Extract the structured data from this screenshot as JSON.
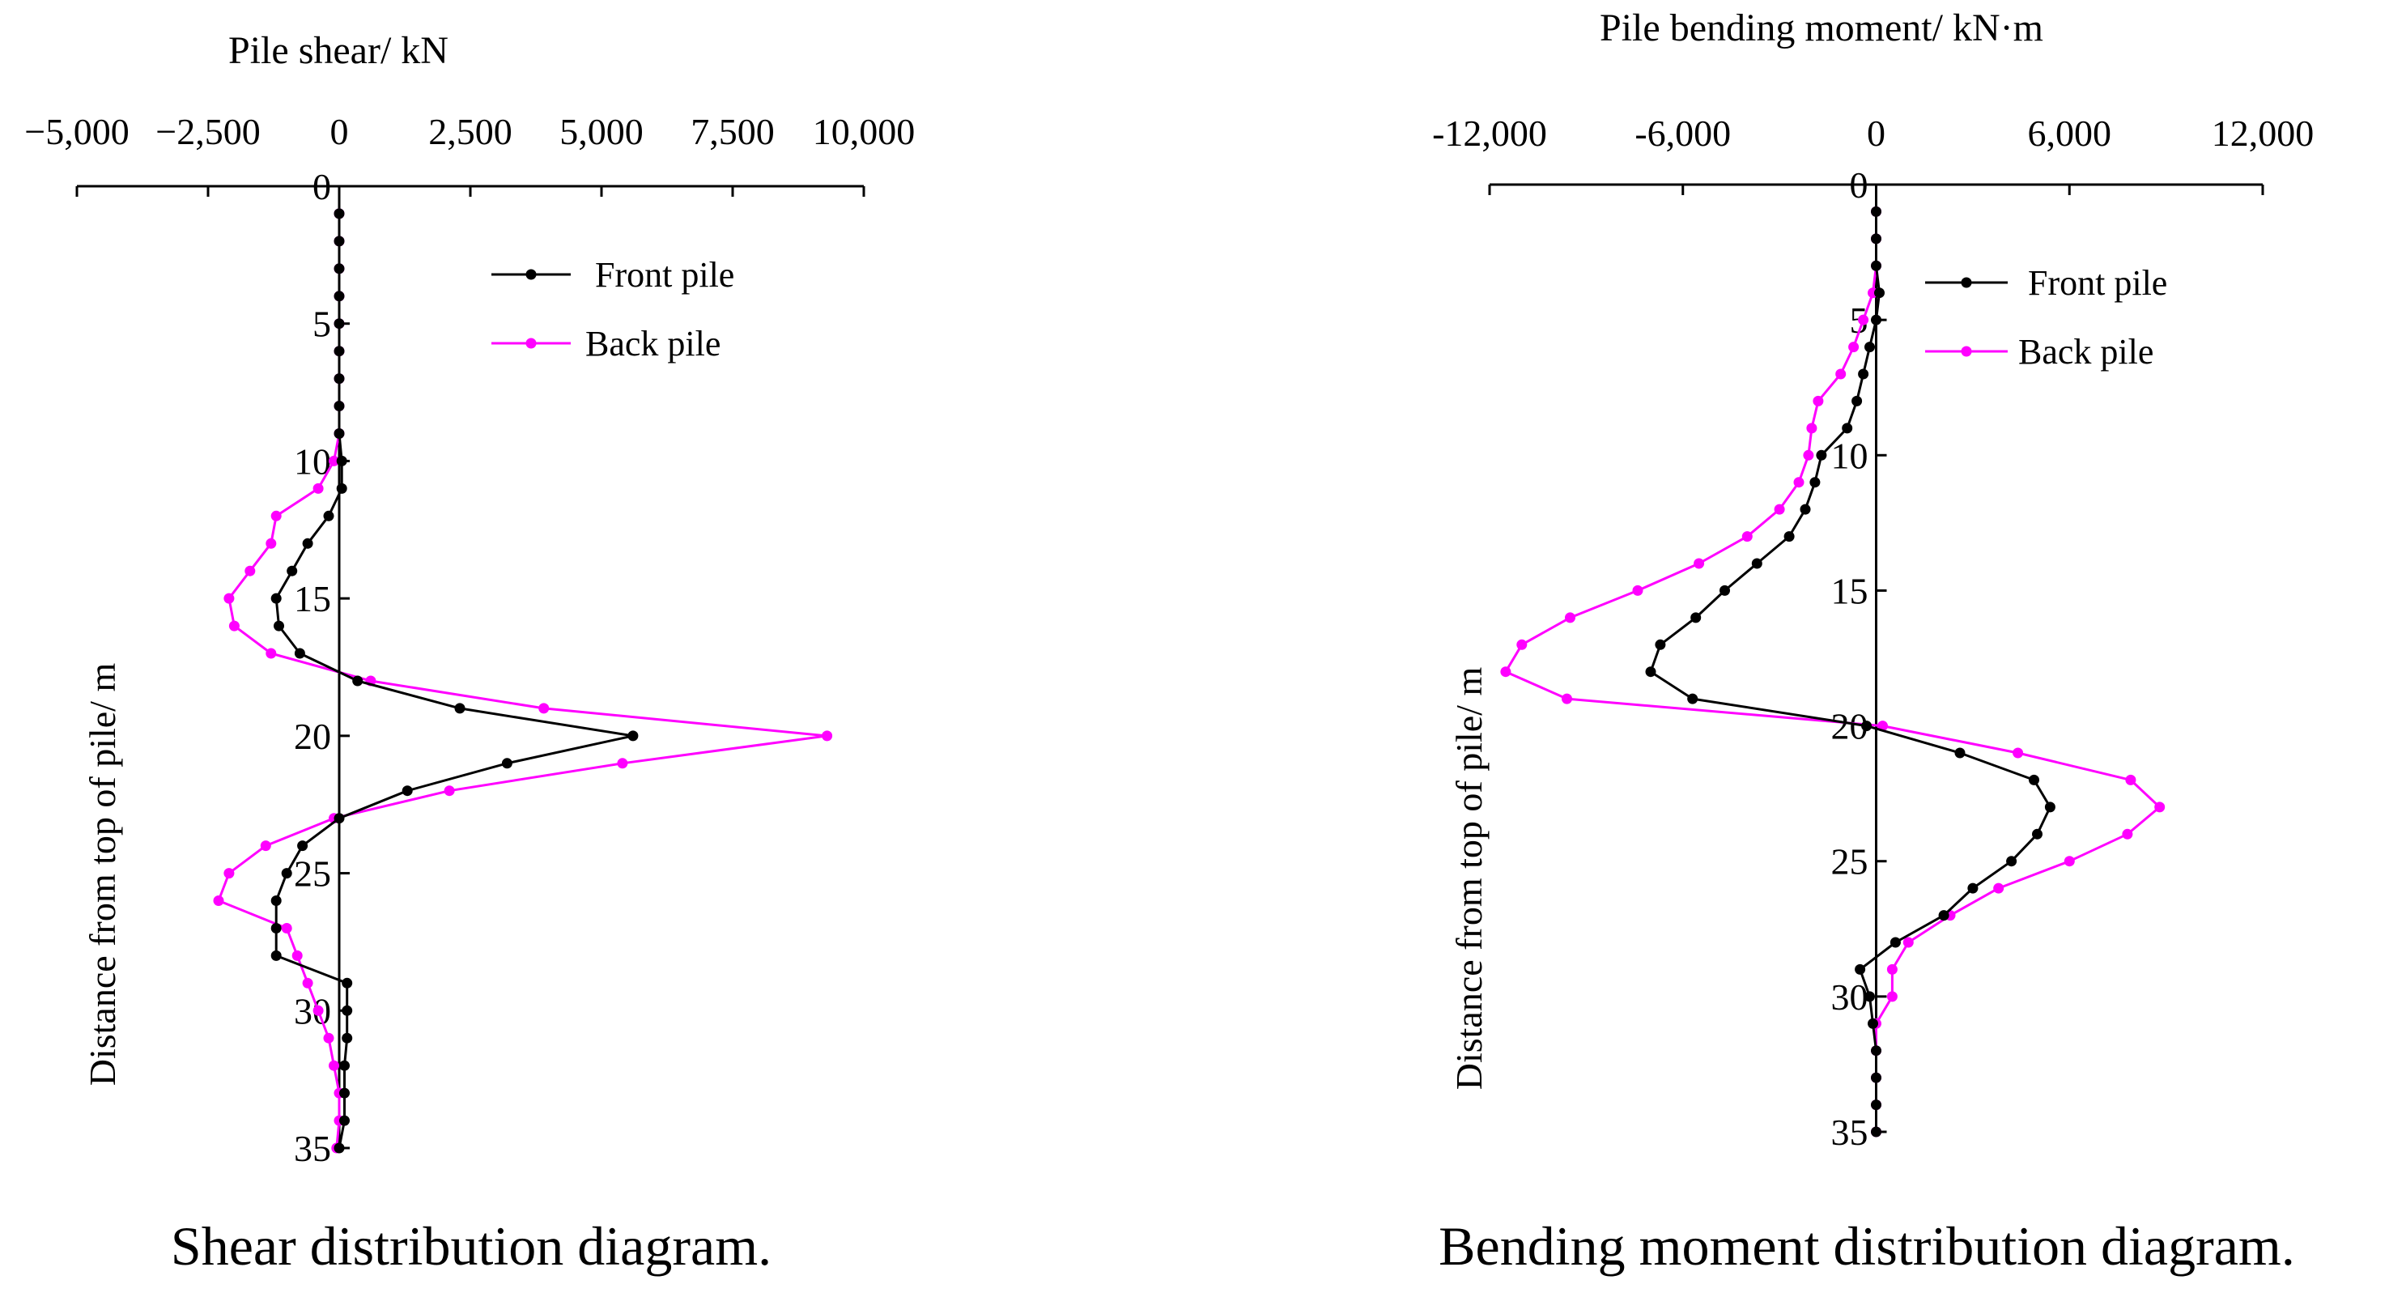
{
  "chart_data": [
    {
      "type": "line",
      "title": "Pile shear/ kN",
      "caption": "Shear distribution diagram.",
      "xlabel": "Pile shear/ kN",
      "ylabel": "Distance from top of pile/ m",
      "xlim": [
        -5000,
        10000
      ],
      "ylim": [
        0,
        35
      ],
      "y_inverted": true,
      "x_ticks": [
        -5000,
        -2500,
        0,
        2500,
        5000,
        7500,
        10000
      ],
      "x_tick_labels": [
        "−5,000",
        "−2,500",
        "0",
        "2,500",
        "5,000",
        "7,500",
        "10,000"
      ],
      "y_ticks": [
        0,
        5,
        10,
        15,
        20,
        25,
        30,
        35
      ],
      "y_tick_labels": [
        "0",
        "5",
        "10",
        "15",
        "20",
        "25",
        "30",
        "35"
      ],
      "legend_position": "top-right",
      "series": [
        {
          "name": "Front pile",
          "color": "#000000",
          "points": [
            [
              0,
              1
            ],
            [
              0,
              2
            ],
            [
              0,
              3
            ],
            [
              0,
              4
            ],
            [
              0,
              5
            ],
            [
              0,
              6
            ],
            [
              0,
              7
            ],
            [
              0,
              8
            ],
            [
              0,
              9
            ],
            [
              50,
              10
            ],
            [
              50,
              11
            ],
            [
              -200,
              12
            ],
            [
              -600,
              13
            ],
            [
              -900,
              14
            ],
            [
              -1200,
              15
            ],
            [
              -1150,
              16
            ],
            [
              -750,
              17
            ],
            [
              350,
              18
            ],
            [
              2300,
              19
            ],
            [
              5600,
              20
            ],
            [
              3200,
              21
            ],
            [
              1300,
              22
            ],
            [
              0,
              23
            ],
            [
              -700,
              24
            ],
            [
              -1000,
              25
            ],
            [
              -1200,
              26
            ],
            [
              -1200,
              27
            ],
            [
              -1200,
              28
            ],
            [
              150,
              29
            ],
            [
              150,
              30
            ],
            [
              150,
              31
            ],
            [
              100,
              32
            ],
            [
              100,
              33
            ],
            [
              100,
              34
            ],
            [
              0,
              35
            ]
          ]
        },
        {
          "name": "Back pile",
          "color": "#ff00ff",
          "points": [
            [
              0,
              1
            ],
            [
              0,
              2
            ],
            [
              0,
              3
            ],
            [
              0,
              4
            ],
            [
              0,
              5
            ],
            [
              0,
              6
            ],
            [
              0,
              7
            ],
            [
              0,
              8
            ],
            [
              0,
              9
            ],
            [
              -100,
              10
            ],
            [
              -400,
              11
            ],
            [
              -1200,
              12
            ],
            [
              -1300,
              13
            ],
            [
              -1700,
              14
            ],
            [
              -2100,
              15
            ],
            [
              -2000,
              16
            ],
            [
              -1300,
              17
            ],
            [
              600,
              18
            ],
            [
              3900,
              19
            ],
            [
              9300,
              20
            ],
            [
              5400,
              21
            ],
            [
              2100,
              22
            ],
            [
              -100,
              23
            ],
            [
              -1400,
              24
            ],
            [
              -2100,
              25
            ],
            [
              -2300,
              26
            ],
            [
              -1000,
              27
            ],
            [
              -800,
              28
            ],
            [
              -600,
              29
            ],
            [
              -400,
              30
            ],
            [
              -200,
              31
            ],
            [
              -100,
              32
            ],
            [
              0,
              33
            ],
            [
              0,
              34
            ],
            [
              -50,
              35
            ]
          ]
        }
      ]
    },
    {
      "type": "line",
      "title": "Pile bending moment/ kN·m",
      "caption": "Bending moment distribution diagram.",
      "xlabel": "Pile bending moment/ kN·m",
      "ylabel": "Distance from top of pile/ m",
      "xlim": [
        -12000,
        12000
      ],
      "ylim": [
        0,
        35
      ],
      "y_inverted": true,
      "x_ticks": [
        -12000,
        -6000,
        0,
        6000,
        12000
      ],
      "x_tick_labels": [
        "-12,000",
        "-6,000",
        "0",
        "6,000",
        "12,000"
      ],
      "y_ticks": [
        0,
        5,
        10,
        15,
        20,
        25,
        30,
        35
      ],
      "y_tick_labels": [
        "0",
        "5",
        "10",
        "15",
        "20",
        "25",
        "30",
        "35"
      ],
      "legend_position": "top-right",
      "series": [
        {
          "name": "Front pile",
          "color": "#000000",
          "points": [
            [
              0,
              1
            ],
            [
              0,
              2
            ],
            [
              0,
              3
            ],
            [
              100,
              4
            ],
            [
              0,
              5
            ],
            [
              -200,
              6
            ],
            [
              -400,
              7
            ],
            [
              -600,
              8
            ],
            [
              -900,
              9
            ],
            [
              -1700,
              10
            ],
            [
              -1900,
              11
            ],
            [
              -2200,
              12
            ],
            [
              -2700,
              13
            ],
            [
              -3700,
              14
            ],
            [
              -4700,
              15
            ],
            [
              -5600,
              16
            ],
            [
              -6700,
              17
            ],
            [
              -7000,
              18
            ],
            [
              -5700,
              19
            ],
            [
              -300,
              20
            ],
            [
              2600,
              21
            ],
            [
              4900,
              22
            ],
            [
              5400,
              23
            ],
            [
              5000,
              24
            ],
            [
              4200,
              25
            ],
            [
              3000,
              26
            ],
            [
              2100,
              27
            ],
            [
              600,
              28
            ],
            [
              -500,
              29
            ],
            [
              -200,
              30
            ],
            [
              -100,
              31
            ],
            [
              0,
              32
            ],
            [
              0,
              33
            ],
            [
              0,
              34
            ],
            [
              0,
              35
            ]
          ]
        },
        {
          "name": "Back pile",
          "color": "#ff00ff",
          "points": [
            [
              0,
              1
            ],
            [
              0,
              2
            ],
            [
              0,
              3
            ],
            [
              -100,
              4
            ],
            [
              -400,
              5
            ],
            [
              -700,
              6
            ],
            [
              -1100,
              7
            ],
            [
              -1800,
              8
            ],
            [
              -2000,
              9
            ],
            [
              -2100,
              10
            ],
            [
              -2400,
              11
            ],
            [
              -3000,
              12
            ],
            [
              -4000,
              13
            ],
            [
              -5500,
              14
            ],
            [
              -7400,
              15
            ],
            [
              -9500,
              16
            ],
            [
              -11000,
              17
            ],
            [
              -11500,
              18
            ],
            [
              -9600,
              19
            ],
            [
              200,
              20
            ],
            [
              4400,
              21
            ],
            [
              7900,
              22
            ],
            [
              8800,
              23
            ],
            [
              7800,
              24
            ],
            [
              6000,
              25
            ],
            [
              3800,
              26
            ],
            [
              2300,
              27
            ],
            [
              1000,
              28
            ],
            [
              500,
              29
            ],
            [
              500,
              30
            ],
            [
              0,
              31
            ],
            [
              0,
              32
            ],
            [
              0,
              33
            ],
            [
              0,
              34
            ],
            [
              0,
              35
            ]
          ]
        }
      ]
    }
  ]
}
